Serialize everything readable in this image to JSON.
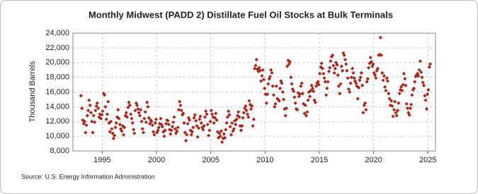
{
  "chart_data": {
    "type": "scatter",
    "title": "Monthly Midwest (PADD 2) Distillate Fuel Oil Stocks at Bulk Terminals",
    "y_label": "Thousand Barrels",
    "source": "Source: U.S. Energy Information Administration",
    "color": "#a3271e",
    "grid": true,
    "xlim": [
      1992.3,
      2025.7
    ],
    "xticks": [
      1995,
      2000,
      2005,
      2010,
      2015,
      2020,
      2025
    ],
    "ylim": [
      8000,
      24000
    ],
    "yticks": [
      {
        "value": 8000,
        "label": "8,000"
      },
      {
        "value": 10000,
        "label": "10,000"
      },
      {
        "value": 12000,
        "label": "12,000"
      },
      {
        "value": 14000,
        "label": "14,000"
      },
      {
        "value": 16000,
        "label": "16,000"
      },
      {
        "value": 18000,
        "label": "18,000"
      },
      {
        "value": 20000,
        "label": "20,000"
      },
      {
        "value": 22000,
        "label": "22,000"
      },
      {
        "value": 24000,
        "label": "24,000"
      }
    ],
    "x": [
      1993.04,
      1993.13,
      1993.21,
      1993.29,
      1993.38,
      1993.46,
      1993.54,
      1993.63,
      1993.71,
      1993.79,
      1993.88,
      1993.96,
      1994.04,
      1994.13,
      1994.21,
      1994.29,
      1994.38,
      1994.46,
      1994.54,
      1994.63,
      1994.71,
      1994.79,
      1994.88,
      1994.96,
      1995.04,
      1995.13,
      1995.21,
      1995.29,
      1995.38,
      1995.46,
      1995.54,
      1995.63,
      1995.71,
      1995.79,
      1995.88,
      1995.96,
      1996.04,
      1996.13,
      1996.21,
      1996.29,
      1996.38,
      1996.46,
      1996.54,
      1996.63,
      1996.71,
      1996.79,
      1996.88,
      1996.96,
      1997.04,
      1997.13,
      1997.21,
      1997.29,
      1997.38,
      1997.46,
      1997.54,
      1997.63,
      1997.71,
      1997.79,
      1997.88,
      1997.96,
      1998.04,
      1998.13,
      1998.21,
      1998.29,
      1998.38,
      1998.46,
      1998.54,
      1998.63,
      1998.71,
      1998.79,
      1998.88,
      1998.96,
      1999.04,
      1999.13,
      1999.21,
      1999.29,
      1999.38,
      1999.46,
      1999.54,
      1999.63,
      1999.71,
      1999.79,
      1999.88,
      1999.96,
      2000.04,
      2000.13,
      2000.21,
      2000.29,
      2000.38,
      2000.46,
      2000.54,
      2000.63,
      2000.71,
      2000.79,
      2000.88,
      2000.96,
      2001.04,
      2001.13,
      2001.21,
      2001.29,
      2001.38,
      2001.46,
      2001.54,
      2001.63,
      2001.71,
      2001.79,
      2001.88,
      2001.96,
      2002.04,
      2002.13,
      2002.21,
      2002.29,
      2002.38,
      2002.46,
      2002.54,
      2002.63,
      2002.71,
      2002.79,
      2002.88,
      2002.96,
      2003.04,
      2003.13,
      2003.21,
      2003.29,
      2003.38,
      2003.46,
      2003.54,
      2003.63,
      2003.71,
      2003.79,
      2003.88,
      2003.96,
      2004.04,
      2004.13,
      2004.21,
      2004.29,
      2004.38,
      2004.46,
      2004.54,
      2004.63,
      2004.71,
      2004.79,
      2004.88,
      2004.96,
      2005.04,
      2005.13,
      2005.21,
      2005.29,
      2005.38,
      2005.46,
      2005.54,
      2005.63,
      2005.71,
      2005.79,
      2005.88,
      2005.96,
      2006.04,
      2006.13,
      2006.21,
      2006.29,
      2006.38,
      2006.46,
      2006.54,
      2006.63,
      2006.71,
      2006.79,
      2006.88,
      2006.96,
      2007.04,
      2007.13,
      2007.21,
      2007.29,
      2007.38,
      2007.46,
      2007.54,
      2007.63,
      2007.71,
      2007.79,
      2007.88,
      2007.96,
      2008.04,
      2008.13,
      2008.21,
      2008.29,
      2008.38,
      2008.46,
      2008.54,
      2008.63,
      2008.71,
      2008.79,
      2008.88,
      2008.96,
      2009.04,
      2009.13,
      2009.21,
      2009.29,
      2009.38,
      2009.46,
      2009.54,
      2009.63,
      2009.71,
      2009.79,
      2009.88,
      2009.96,
      2010.04,
      2010.13,
      2010.21,
      2010.29,
      2010.38,
      2010.46,
      2010.54,
      2010.63,
      2010.71,
      2010.79,
      2010.88,
      2010.96,
      2011.04,
      2011.13,
      2011.21,
      2011.29,
      2011.38,
      2011.46,
      2011.54,
      2011.63,
      2011.71,
      2011.79,
      2011.88,
      2011.96,
      2012.04,
      2012.13,
      2012.21,
      2012.29,
      2012.38,
      2012.46,
      2012.54,
      2012.63,
      2012.71,
      2012.79,
      2012.88,
      2012.96,
      2013.04,
      2013.13,
      2013.21,
      2013.29,
      2013.38,
      2013.46,
      2013.54,
      2013.63,
      2013.71,
      2013.79,
      2013.88,
      2013.96,
      2014.04,
      2014.13,
      2014.21,
      2014.29,
      2014.38,
      2014.46,
      2014.54,
      2014.63,
      2014.71,
      2014.79,
      2014.88,
      2014.96,
      2015.04,
      2015.13,
      2015.21,
      2015.29,
      2015.38,
      2015.46,
      2015.54,
      2015.63,
      2015.71,
      2015.79,
      2015.88,
      2015.96,
      2016.04,
      2016.13,
      2016.21,
      2016.29,
      2016.38,
      2016.46,
      2016.54,
      2016.63,
      2016.71,
      2016.79,
      2016.88,
      2016.96,
      2017.04,
      2017.13,
      2017.21,
      2017.29,
      2017.38,
      2017.46,
      2017.54,
      2017.63,
      2017.71,
      2017.79,
      2017.88,
      2017.96,
      2018.04,
      2018.13,
      2018.21,
      2018.29,
      2018.38,
      2018.46,
      2018.54,
      2018.63,
      2018.71,
      2018.79,
      2018.88,
      2018.96,
      2019.04,
      2019.13,
      2019.21,
      2019.29,
      2019.38,
      2019.46,
      2019.54,
      2019.63,
      2019.71,
      2019.79,
      2019.88,
      2019.96,
      2020.04,
      2020.13,
      2020.21,
      2020.29,
      2020.38,
      2020.46,
      2020.54,
      2020.63,
      2020.71,
      2020.79,
      2020.88,
      2020.96,
      2021.04,
      2021.13,
      2021.21,
      2021.29,
      2021.38,
      2021.46,
      2021.54,
      2021.63,
      2021.71,
      2021.79,
      2021.88,
      2021.96,
      2022.04,
      2022.13,
      2022.21,
      2022.29,
      2022.38,
      2022.46,
      2022.54,
      2022.63,
      2022.71,
      2022.79,
      2022.88,
      2022.96,
      2023.04,
      2023.13,
      2023.21,
      2023.29,
      2023.38,
      2023.46,
      2023.54,
      2023.63,
      2023.71,
      2023.79,
      2023.88,
      2023.96,
      2024.04,
      2024.13,
      2024.21,
      2024.29,
      2024.38,
      2024.46,
      2024.54,
      2024.63,
      2024.71,
      2024.79,
      2024.88,
      2024.96,
      2025.04,
      2025.13,
      2025.21
    ],
    "values": [
      15500,
      13800,
      12200,
      11700,
      12000,
      10500,
      11500,
      12800,
      13500,
      14900,
      14200,
      13200,
      12000,
      10500,
      12800,
      11900,
      13500,
      14100,
      14500,
      13800,
      12600,
      13000,
      12400,
      12900,
      13400,
      15800,
      15600,
      14000,
      12300,
      13000,
      14700,
      11800,
      10600,
      12000,
      11000,
      10400,
      9700,
      10100,
      11200,
      11800,
      12600,
      13600,
      12400,
      11600,
      11000,
      10700,
      11400,
      10200,
      11200,
      12800,
      13200,
      12600,
      13900,
      14600,
      14200,
      13000,
      12400,
      11800,
      10900,
      10400,
      13500,
      14500,
      14200,
      13700,
      13200,
      12800,
      13600,
      12000,
      11000,
      10500,
      12400,
      13300,
      11900,
      14600,
      14000,
      12500,
      11700,
      12200,
      12000,
      11500,
      10600,
      10200,
      11800,
      12300,
      10500,
      10800,
      11200,
      11700,
      12400,
      11600,
      11300,
      10600,
      10000,
      10800,
      11700,
      12200,
      12100,
      11600,
      10900,
      10300,
      10800,
      11300,
      11900,
      12600,
      11000,
      10400,
      10700,
      11200,
      13600,
      14700,
      14200,
      13500,
      12900,
      13100,
      11800,
      10500,
      9400,
      10200,
      11700,
      12500,
      12200,
      10800,
      10200,
      10600,
      11200,
      12500,
      12900,
      12100,
      11400,
      9900,
      11100,
      12300,
      12700,
      11800,
      11200,
      10900,
      11400,
      12600,
      13400,
      13000,
      11600,
      10100,
      10800,
      12000,
      13500,
      13000,
      12600,
      11800,
      12500,
      13100,
      12200,
      10600,
      9800,
      10400,
      10000,
      10700,
      9200,
      9700,
      10300,
      9800,
      10900,
      11800,
      12600,
      13400,
      12900,
      11300,
      10200,
      11800,
      10700,
      11000,
      12100,
      11600,
      12300,
      12800,
      13300,
      12600,
      11400,
      10800,
      11400,
      12500,
      13200,
      13800,
      14100,
      13500,
      13000,
      12600,
      14800,
      14300,
      13700,
      14100,
      11400,
      12300,
      19200,
      19600,
      20400,
      19100,
      18800,
      19300,
      18900,
      17500,
      18200,
      19000,
      17700,
      16500,
      15700,
      14500,
      15700,
      17100,
      17800,
      18100,
      19000,
      18600,
      16800,
      15600,
      14000,
      14400,
      16800,
      15100,
      15000,
      14800,
      16500,
      17500,
      17200,
      16000,
      15000,
      13700,
      12800,
      13800,
      19500,
      20300,
      19800,
      20100,
      18000,
      17100,
      16400,
      16100,
      15300,
      14500,
      13700,
      13600,
      15900,
      15400,
      15700,
      16800,
      17200,
      15800,
      14400,
      13100,
      14200,
      12800,
      13300,
      14900,
      16000,
      15400,
      16200,
      16900,
      16500,
      16100,
      14900,
      14600,
      16800,
      17200,
      17400,
      17000,
      18500,
      19400,
      19900,
      19200,
      18500,
      17900,
      17400,
      15600,
      16500,
      17400,
      18800,
      19300,
      20200,
      20800,
      21000,
      19600,
      18600,
      19200,
      20000,
      19700,
      18300,
      16800,
      15800,
      17100,
      19500,
      18900,
      21300,
      21000,
      20400,
      19800,
      18900,
      17900,
      16400,
      16000,
      17200,
      18000,
      19200,
      18600,
      17900,
      17500,
      17200,
      16800,
      15100,
      16600,
      17600,
      18000,
      18600,
      16900,
      13200,
      14200,
      14500,
      13600,
      17400,
      17800,
      19300,
      19900,
      20700,
      20100,
      19500,
      19800,
      18600,
      18300,
      17900,
      18900,
      19200,
      21000,
      21100,
      23400,
      21000,
      18600,
      17600,
      18200,
      16700,
      16200,
      17900,
      17500,
      15800,
      15100,
      14200,
      14800,
      14100,
      12700,
      13600,
      14700,
      13200,
      12800,
      13500,
      14500,
      15800,
      16300,
      16700,
      16200,
      17000,
      18500,
      17800,
      16900,
      14400,
      13800,
      13200,
      12900,
      13800,
      14300,
      15600,
      16300,
      16500,
      17400,
      18100,
      18300,
      18500,
      18200,
      19000,
      20200,
      18700,
      18000,
      17300,
      16900,
      15500,
      14900,
      13700,
      15700,
      16300,
      19400,
      19800
    ]
  }
}
